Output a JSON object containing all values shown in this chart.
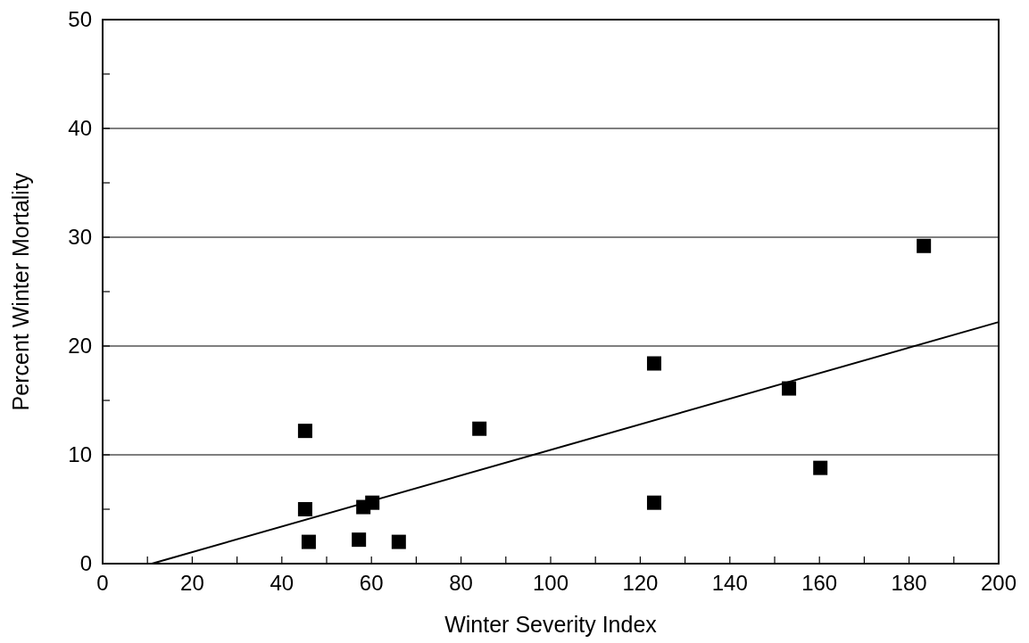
{
  "chart_data": {
    "type": "scatter",
    "xlabel": "Winter Severity Index",
    "ylabel": "Percent Winter Mortality",
    "xlim": [
      0,
      200
    ],
    "ylim": [
      0,
      50
    ],
    "xticks": [
      0,
      {
        "value": 10,
        "label": null
      },
      20,
      {
        "value": 30,
        "label": null
      },
      40,
      {
        "value": 50,
        "label": null
      },
      60,
      {
        "value": 70,
        "label": null
      },
      80,
      {
        "value": 90,
        "label": null
      },
      100,
      {
        "value": 110,
        "label": null
      },
      120,
      {
        "value": 130,
        "label": null
      },
      140,
      {
        "value": 150,
        "label": null
      },
      160,
      {
        "value": 170,
        "label": null
      },
      180,
      {
        "value": 190,
        "label": null
      },
      200
    ],
    "yticks": [
      0,
      {
        "value": 5,
        "label": null
      },
      10,
      {
        "value": 15,
        "label": null
      },
      20,
      {
        "value": 25,
        "label": null
      },
      30,
      {
        "value": 35,
        "label": null
      },
      40,
      {
        "value": 45,
        "label": null
      },
      50
    ],
    "grid": "y",
    "marker": "square",
    "series": [
      {
        "color": "#000000",
        "x": [
          45.2,
          45.2,
          46.0,
          57.2,
          58.2,
          60.2,
          66.1,
          84.1,
          123.1,
          123.1,
          153.2,
          160.2,
          183.3
        ],
        "values": [
          12.2,
          5.0,
          2.0,
          2.2,
          5.2,
          5.6,
          2.0,
          12.4,
          18.4,
          5.6,
          16.1,
          8.8,
          29.2
        ]
      },
      {
        "type": "line",
        "color": "#000000",
        "marker": "none",
        "line_style": "solid",
        "x": [
          11,
          200
        ],
        "values": [
          0,
          22.2
        ]
      }
    ]
  }
}
